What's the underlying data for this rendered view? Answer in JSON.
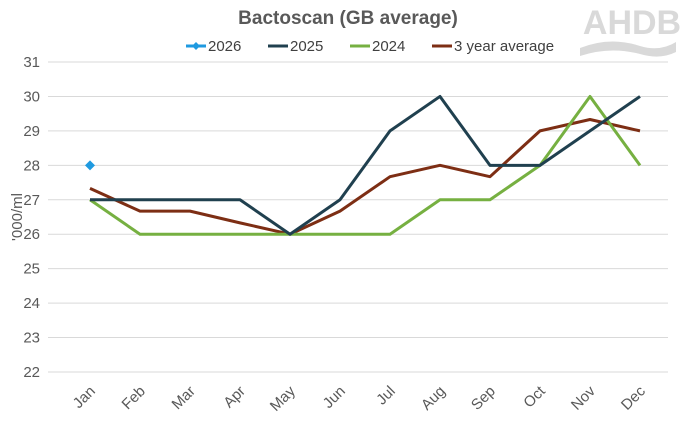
{
  "chart_data": {
    "type": "line",
    "title": "Bactoscan (GB average)",
    "xlabel": "",
    "ylabel": "'000/ml",
    "ylim": [
      22,
      31
    ],
    "yticks": [
      22,
      23,
      24,
      25,
      26,
      27,
      28,
      29,
      30,
      31
    ],
    "grid": true,
    "legend_position": "top",
    "categories": [
      "Jan",
      "Feb",
      "Mar",
      "Apr",
      "May",
      "Jun",
      "Jul",
      "Aug",
      "Sep",
      "Oct",
      "Nov",
      "Dec"
    ],
    "series": [
      {
        "name": "2026",
        "color": "#1f9ae0",
        "marker": "diamond",
        "values": [
          28,
          null,
          null,
          null,
          null,
          null,
          null,
          null,
          null,
          null,
          null,
          null
        ]
      },
      {
        "name": "2025",
        "color": "#20404f",
        "values": [
          27,
          27,
          27,
          27,
          26,
          27,
          29,
          30,
          28,
          28,
          29,
          30
        ]
      },
      {
        "name": "2024",
        "color": "#76b041",
        "values": [
          27,
          26,
          26,
          26,
          26,
          26,
          26,
          27,
          27,
          28,
          30,
          28
        ]
      },
      {
        "name": "3 year average",
        "color": "#7d2e14",
        "values": [
          27.33,
          26.67,
          26.67,
          26.33,
          26,
          26.67,
          27.67,
          28,
          27.67,
          29,
          29.33,
          29
        ]
      }
    ]
  },
  "logo": "AHDB"
}
